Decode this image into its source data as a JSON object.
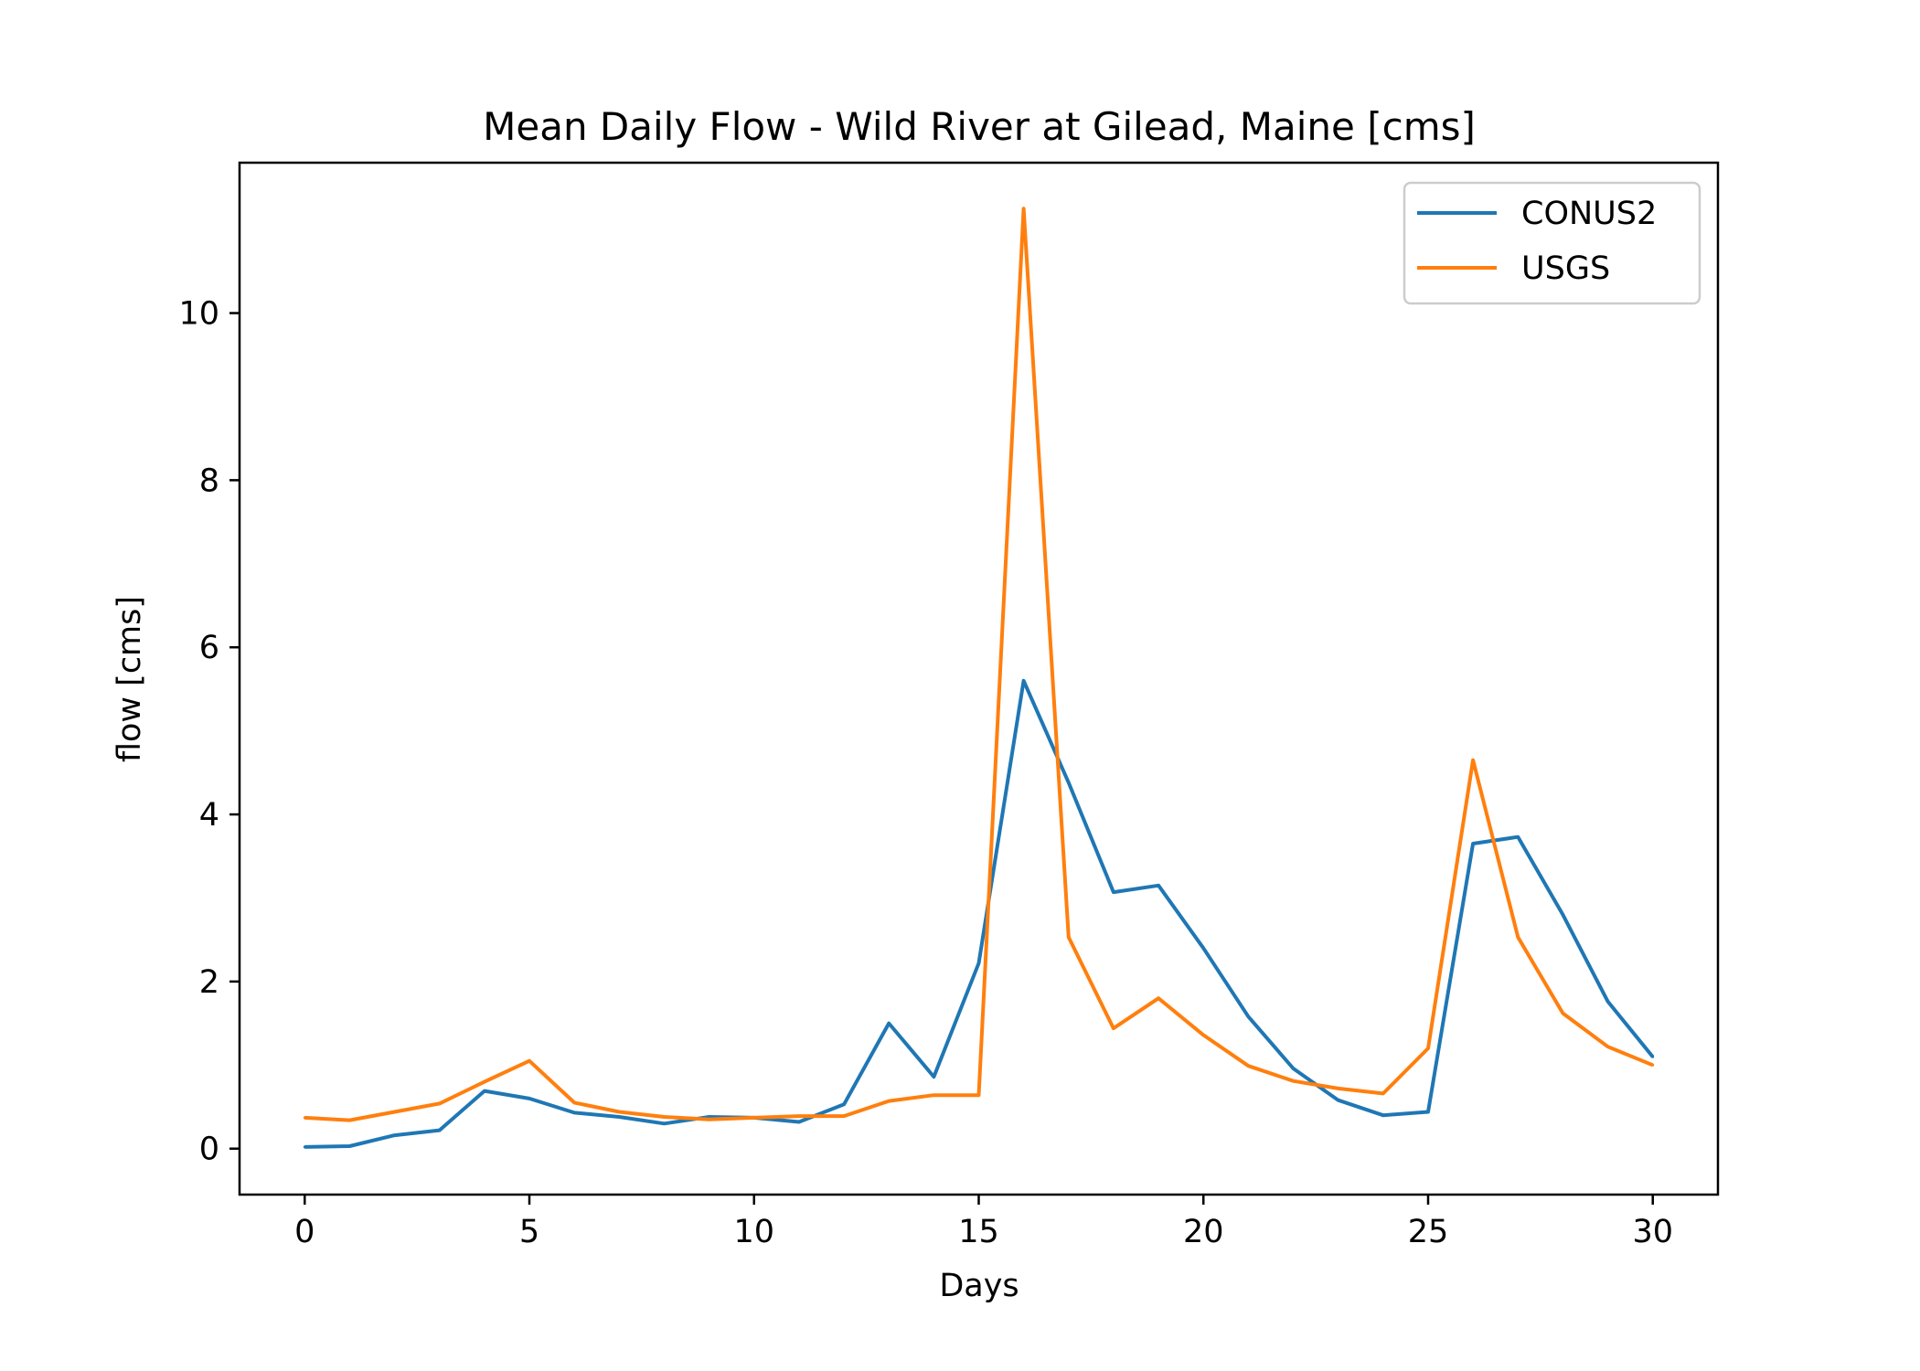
{
  "chart_data": {
    "type": "line",
    "title": "Mean Daily Flow - Wild River at Gilead, Maine [cms]",
    "xlabel": "Days",
    "ylabel": "flow [cms]",
    "xlim": [
      -1.45,
      31.45
    ],
    "ylim": [
      -0.55,
      11.8
    ],
    "xticks": [
      0,
      5,
      10,
      15,
      20,
      25,
      30
    ],
    "yticks": [
      0,
      2,
      4,
      6,
      8,
      10
    ],
    "grid": false,
    "legend_position": "top-right",
    "x": [
      0,
      1,
      2,
      3,
      4,
      5,
      6,
      7,
      8,
      9,
      10,
      11,
      12,
      13,
      14,
      15,
      16,
      17,
      18,
      19,
      20,
      21,
      22,
      23,
      24,
      25,
      26,
      27,
      28,
      29,
      30
    ],
    "series": [
      {
        "name": "CONUS2",
        "color": "#1f77b4",
        "values": [
          0.02,
          0.03,
          0.16,
          0.22,
          0.69,
          0.6,
          0.43,
          0.38,
          0.3,
          0.38,
          0.37,
          0.32,
          0.53,
          1.5,
          0.86,
          2.22,
          5.6,
          4.38,
          3.07,
          3.15,
          2.4,
          1.58,
          0.96,
          0.58,
          0.4,
          0.44,
          3.65,
          3.73,
          2.8,
          1.76,
          1.1
        ]
      },
      {
        "name": "USGS",
        "color": "#ff7f0e",
        "values": [
          0.37,
          0.34,
          0.44,
          0.54,
          0.8,
          1.05,
          0.55,
          0.44,
          0.38,
          0.35,
          0.37,
          0.39,
          0.39,
          0.57,
          0.64,
          0.64,
          11.25,
          2.53,
          1.44,
          1.8,
          1.36,
          0.99,
          0.81,
          0.72,
          0.66,
          1.2,
          4.65,
          2.53,
          1.62,
          1.22,
          1.0
        ]
      }
    ]
  }
}
